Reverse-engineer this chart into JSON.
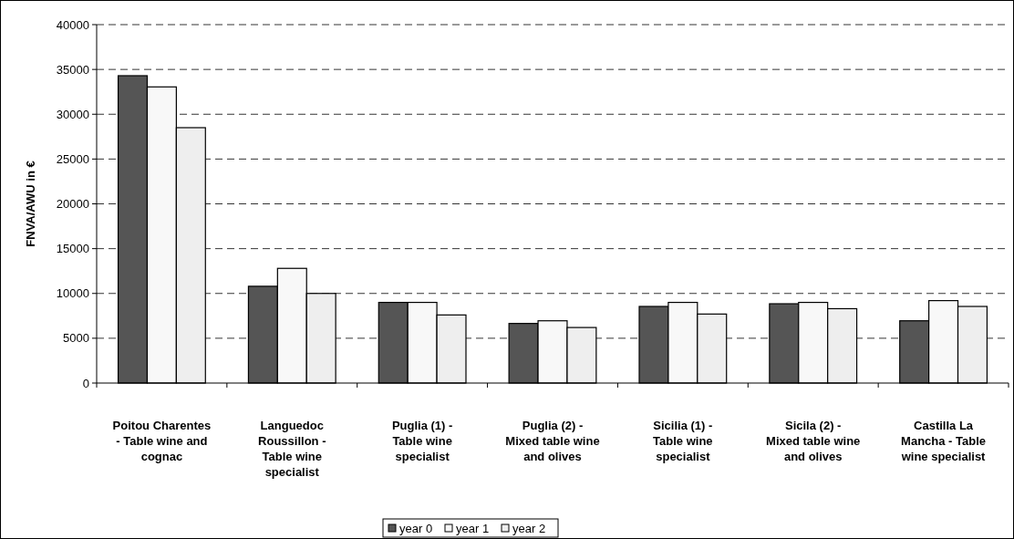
{
  "chart_data": {
    "type": "bar",
    "ylabel": "FNVA/AWU in €",
    "categories": [
      "Poitou Charentes - Table wine and cognac",
      "Languedoc Roussillon - Table wine specialist",
      "Puglia (1) - Table wine specialist",
      "Puglia (2) - Mixed table wine and olives",
      "Sicilia (1) - Table wine specialist",
      "Sicila (2) - Mixed table wine and olives",
      "Castilla La Mancha - Table wine specialist"
    ],
    "series": [
      {
        "name": "year 0",
        "color": "#555555",
        "values": [
          34300,
          10800,
          9000,
          6650,
          8550,
          8850,
          6950
        ]
      },
      {
        "name": "year 1",
        "color": "#f8f8f8",
        "values": [
          33050,
          12800,
          9000,
          6950,
          9000,
          9000,
          9200
        ]
      },
      {
        "name": "year 2",
        "color": "#eeeeee",
        "values": [
          28500,
          10000,
          7600,
          6200,
          7700,
          8300,
          8550
        ]
      }
    ],
    "ylim": [
      0,
      40000
    ],
    "yticks": [
      0,
      5000,
      10000,
      15000,
      20000,
      25000,
      30000,
      35000,
      40000
    ],
    "grid": "y",
    "legend": "bottom"
  }
}
